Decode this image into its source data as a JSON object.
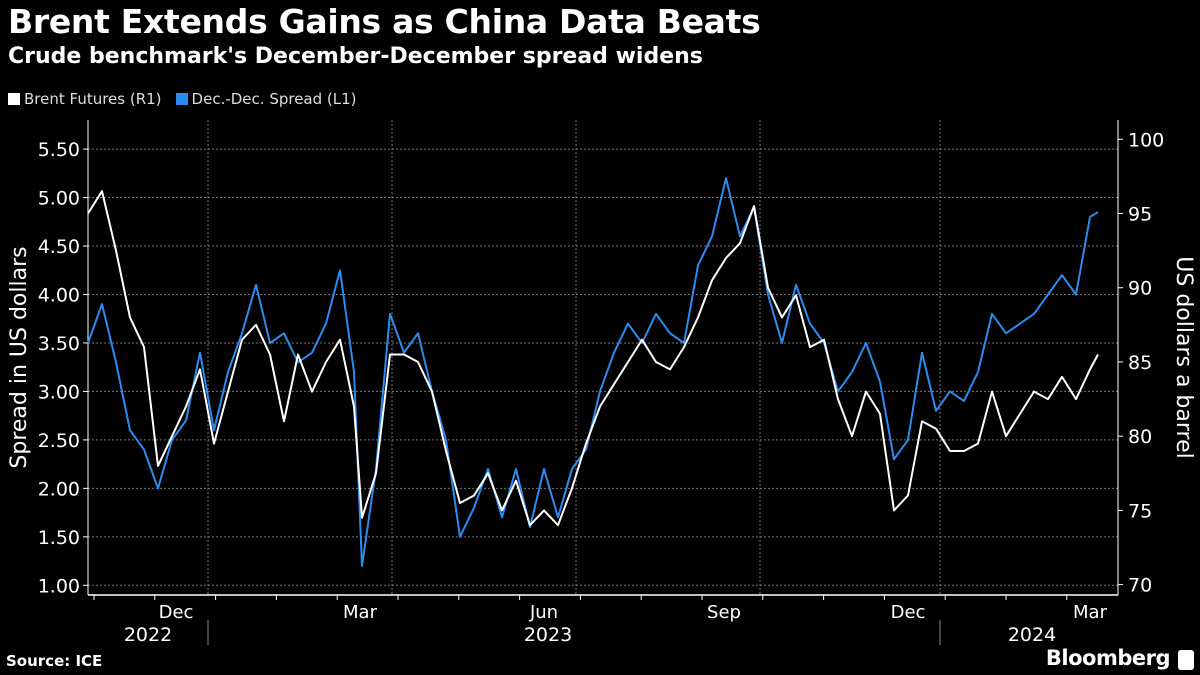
{
  "chart_data": {
    "type": "line",
    "title": "Brent Extends Gains as China Data Beats",
    "subtitle": "Crude benchmark's December-December spread widens",
    "x_unit": "days since 2022-10-28",
    "x_origin": "2022-10-28",
    "x_range": [
      0,
      515
    ],
    "x_ticks": [
      {
        "label": "Dec",
        "x": 44
      },
      {
        "label": "Mar",
        "x": 136
      },
      {
        "label": "Jun",
        "x": 228
      },
      {
        "label": "Sep",
        "x": 318
      },
      {
        "label": "Dec",
        "x": 410
      },
      {
        "label": "Mar",
        "x": 501
      }
    ],
    "x_gridlines": [
      60,
      152,
      244,
      336,
      426
    ],
    "years": [
      {
        "label": "2022",
        "x": 30
      },
      {
        "label": "2023",
        "x": 230
      },
      {
        "label": "2024",
        "x": 472
      }
    ],
    "year_dividers": [
      60,
      426
    ],
    "left_axis": {
      "label": "Spread in US dollars",
      "range": [
        0.9,
        5.8
      ],
      "ticks": [
        "1.00",
        "1.50",
        "2.00",
        "2.50",
        "3.00",
        "3.50",
        "4.00",
        "4.50",
        "5.00",
        "5.50"
      ]
    },
    "right_axis": {
      "label": "US dollars a barrel",
      "range": [
        69.3,
        101.3
      ],
      "ticks": [
        "70",
        "75",
        "80",
        "85",
        "90",
        "95",
        "100"
      ]
    },
    "grid": true,
    "legend_position": "top-left",
    "x": [
      0,
      7,
      14,
      21,
      28,
      35,
      42,
      49,
      56,
      63,
      70,
      77,
      84,
      91,
      98,
      105,
      112,
      119,
      126,
      133,
      137,
      144,
      151,
      158,
      165,
      172,
      179,
      186,
      193,
      200,
      207,
      214,
      221,
      228,
      235,
      242,
      249,
      256,
      263,
      270,
      277,
      284,
      291,
      298,
      305,
      312,
      319,
      326,
      333,
      340,
      347,
      354,
      361,
      368,
      375,
      382,
      389,
      396,
      403,
      410,
      417,
      424,
      431,
      438,
      445,
      452,
      459,
      466,
      473,
      480,
      487,
      494,
      501,
      505
    ],
    "series": [
      {
        "name": "Dec.-Dec. Spread (L1)",
        "axis": "left",
        "color": "#2b8cf0",
        "values": [
          3.5,
          3.9,
          3.3,
          2.6,
          2.4,
          2.0,
          2.5,
          2.7,
          3.4,
          2.6,
          3.2,
          3.6,
          4.1,
          3.5,
          3.6,
          3.3,
          3.4,
          3.7,
          4.25,
          3.2,
          1.2,
          2.2,
          3.8,
          3.4,
          3.6,
          3.0,
          2.5,
          1.5,
          1.8,
          2.2,
          1.7,
          2.2,
          1.6,
          2.2,
          1.7,
          2.2,
          2.4,
          3.0,
          3.4,
          3.7,
          3.5,
          3.8,
          3.6,
          3.5,
          4.3,
          4.6,
          5.2,
          4.6,
          4.9,
          4.0,
          3.5,
          4.1,
          3.7,
          3.5,
          3.0,
          3.2,
          3.5,
          3.1,
          2.3,
          2.5,
          3.4,
          2.8,
          3.0,
          2.9,
          3.2,
          3.8,
          3.6,
          3.7,
          3.8,
          4.0,
          4.2,
          4.0,
          4.8,
          4.85
        ]
      },
      {
        "name": "Brent Futures (R1)",
        "axis": "right",
        "color": "#ffffff",
        "values": [
          95,
          96.5,
          92.5,
          88,
          86,
          78,
          80,
          82,
          84.5,
          79.5,
          83,
          86.5,
          87.5,
          85.5,
          81,
          85.5,
          83,
          85,
          86.5,
          82,
          74.5,
          77.5,
          85.5,
          85.5,
          85,
          83,
          79,
          75.5,
          76,
          77.5,
          75,
          77,
          74,
          75,
          74,
          76.5,
          79.5,
          82,
          83.5,
          85,
          86.5,
          85,
          84.5,
          86,
          88,
          90.5,
          92,
          93,
          95.5,
          90,
          88,
          89.5,
          86,
          86.5,
          82.5,
          80,
          83,
          81.5,
          75,
          76,
          81,
          80.5,
          79,
          79,
          79.5,
          83,
          80,
          81.5,
          83,
          82.5,
          84,
          82.5,
          84.5,
          85.5
        ]
      }
    ]
  },
  "legend": [
    {
      "label": "Brent Futures (R1)",
      "color": "#ffffff"
    },
    {
      "label": "Dec.-Dec. Spread (L1)",
      "color": "#2b8cf0"
    }
  ],
  "footer": {
    "source": "Source: ICE",
    "brand": "Bloomberg"
  }
}
